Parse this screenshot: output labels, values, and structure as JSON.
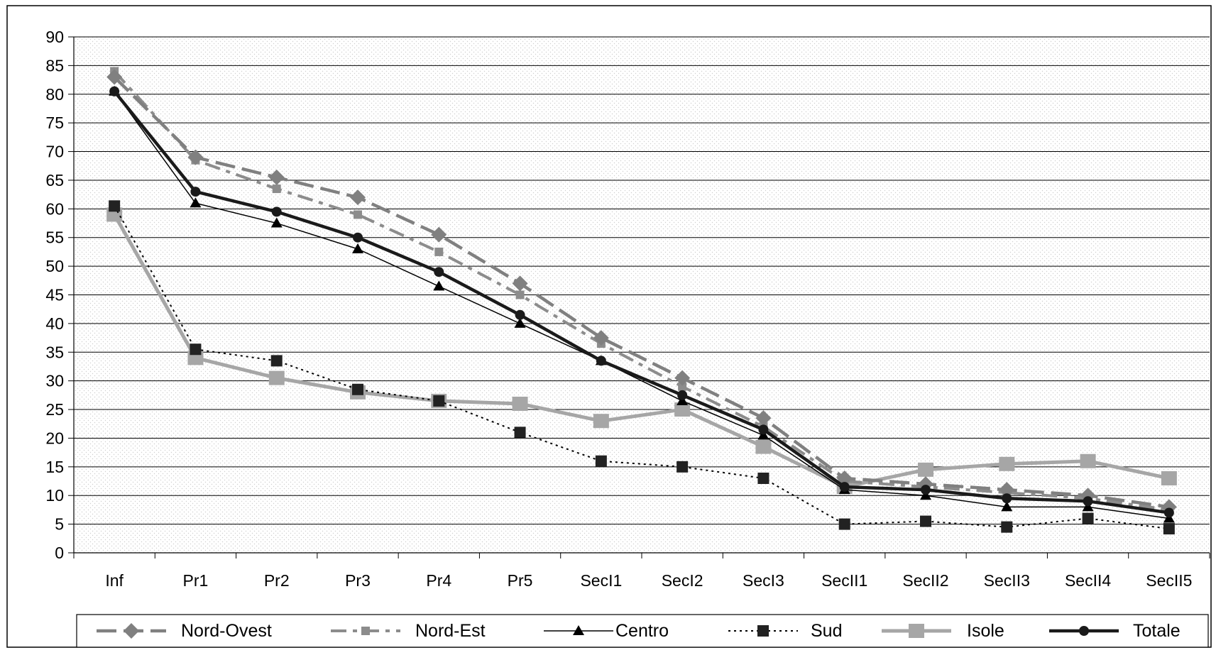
{
  "chart_data": {
    "type": "line",
    "title": "",
    "xlabel": "",
    "ylabel": "",
    "ylim": [
      0,
      90
    ],
    "ytick_step": 5,
    "grid": true,
    "legend_position": "bottom",
    "categories": [
      "Inf",
      "Pr1",
      "Pr2",
      "Pr3",
      "Pr4",
      "Pr5",
      "SecI1",
      "SecI2",
      "SecI3",
      "SecII1",
      "SecII2",
      "SecII3",
      "SecII4",
      "SecII5"
    ],
    "series": [
      {
        "name": "Nord-Ovest",
        "color": "#808080",
        "marker": "diamond",
        "dash": "long-dash",
        "values": [
          83,
          69,
          65.5,
          62,
          55.5,
          47,
          37.5,
          30.5,
          23.5,
          13,
          12,
          11,
          10,
          8
        ]
      },
      {
        "name": "Nord-Est",
        "color": "#8c8c8c",
        "marker": "square-small",
        "dash": "dash",
        "values": [
          84,
          68.5,
          63.5,
          59,
          52.5,
          45,
          36.5,
          29,
          22,
          12.5,
          11.5,
          10.5,
          9.5,
          7.5
        ]
      },
      {
        "name": "Centro",
        "color": "#000000",
        "marker": "triangle",
        "dash": "solid-thin",
        "values": [
          80.5,
          61,
          57.5,
          53,
          46.5,
          40,
          33.5,
          26.5,
          20.5,
          11,
          10,
          8,
          8,
          6
        ]
      },
      {
        "name": "Sud",
        "color": "#000000",
        "marker": "square",
        "dash": "dotted",
        "values": [
          60.5,
          35.5,
          33.5,
          28.5,
          26.5,
          21,
          16,
          15,
          13,
          5,
          5.5,
          4.5,
          6,
          4.2
        ]
      },
      {
        "name": "Isole",
        "color": "#a6a6a6",
        "marker": "square-large",
        "dash": "solid-thick-light",
        "values": [
          59,
          34,
          30.5,
          28,
          26.5,
          26,
          23,
          25,
          18.5,
          11.5,
          14.5,
          15.5,
          16,
          13
        ]
      },
      {
        "name": "Totale",
        "color": "#1a1a1a",
        "marker": "circle",
        "dash": "solid-thick",
        "values": [
          80.5,
          63,
          59.5,
          55,
          49,
          41.5,
          33.5,
          27.5,
          21.5,
          11.5,
          11,
          9.5,
          9,
          7
        ]
      }
    ]
  }
}
